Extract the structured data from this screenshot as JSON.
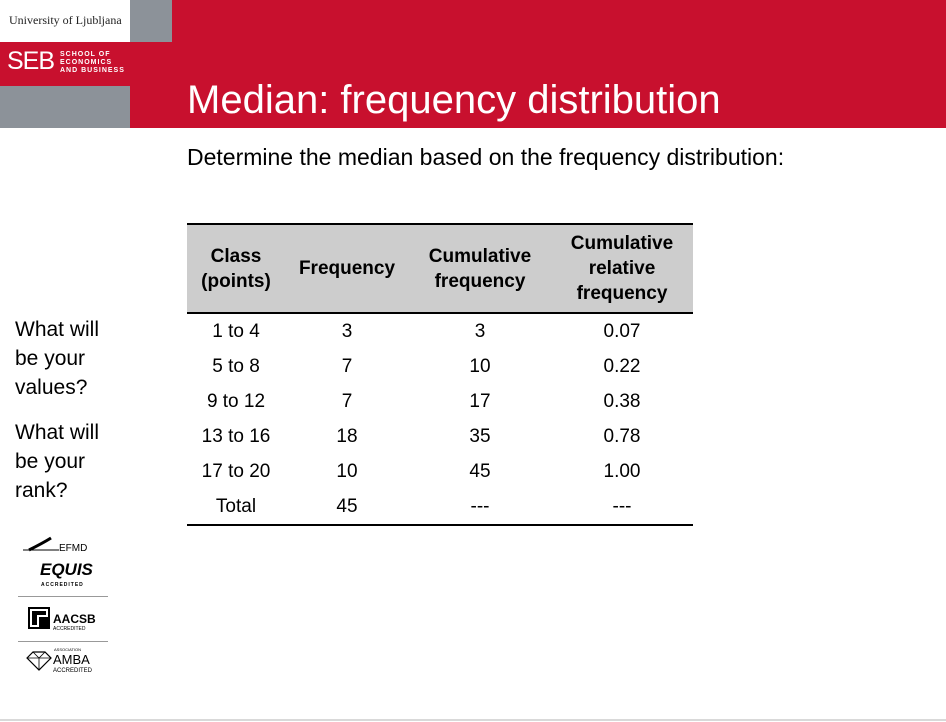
{
  "logo": {
    "university": "University of Ljubljana",
    "seb": "SEB",
    "school_line1": "SCHOOL OF",
    "school_line2": "ECONOMICS",
    "school_line3": "AND BUSINESS"
  },
  "slide": {
    "title": "Median: frequency distribution",
    "subtitle": "Determine the median based on the frequency distribution:"
  },
  "side_questions": [
    {
      "lines": [
        "What will",
        "be your",
        "values?"
      ]
    },
    {
      "lines": [
        "What will",
        "be your",
        "rank?"
      ]
    }
  ],
  "table": {
    "headers": [
      [
        "Class",
        "(points)"
      ],
      [
        "Frequency"
      ],
      [
        "Cumulative",
        "frequency"
      ],
      [
        "Cumulative",
        "relative",
        "frequency"
      ]
    ],
    "rows": [
      [
        "1 to 4",
        "3",
        "3",
        "0.07"
      ],
      [
        "5 to 8",
        "7",
        "10",
        "0.22"
      ],
      [
        "9 to 12",
        "7",
        "17",
        "0.38"
      ],
      [
        "13 to 16",
        "18",
        "35",
        "0.78"
      ],
      [
        "17 to 20",
        "10",
        "45",
        "1.00"
      ],
      [
        "Total",
        "45",
        "---",
        "---"
      ]
    ]
  },
  "accreditations": {
    "efmd": "EFMD",
    "equis": "EQUIS",
    "equis_sub": "ACCREDITED",
    "aacsb": "AACSB",
    "aacsb_sub": "ACCREDITED",
    "amba_assoc": "ASSOCIATION",
    "amba": "AMBA",
    "amba_sub": "ACCREDITED"
  },
  "colors": {
    "brand_red": "#c8102e",
    "brand_grey": "#8c9299",
    "header_grey": "#cdcdcd"
  }
}
